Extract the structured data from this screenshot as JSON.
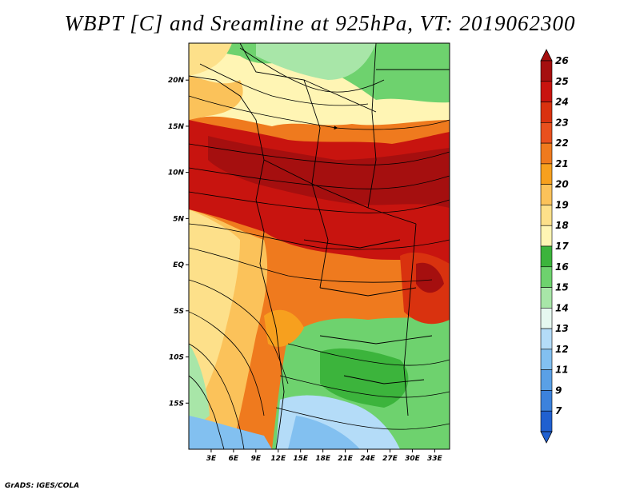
{
  "title": "WBPT [C] and Sreamline at 925hPa, VT: 2019062300",
  "credit": "GrADS: IGES/COLA",
  "map": {
    "lat_range": [
      -20,
      24
    ],
    "lon_range": [
      0,
      35
    ],
    "lat_ticks": [
      {
        "value": 20,
        "label": "20N"
      },
      {
        "value": 15,
        "label": "15N"
      },
      {
        "value": 10,
        "label": "10N"
      },
      {
        "value": 5,
        "label": "5N"
      },
      {
        "value": 0,
        "label": "EQ"
      },
      {
        "value": -5,
        "label": "5S"
      },
      {
        "value": -10,
        "label": "10S"
      },
      {
        "value": -15,
        "label": "15S"
      }
    ],
    "lon_ticks": [
      {
        "value": 3,
        "label": "3E"
      },
      {
        "value": 6,
        "label": "6E"
      },
      {
        "value": 9,
        "label": "9E"
      },
      {
        "value": 12,
        "label": "12E"
      },
      {
        "value": 15,
        "label": "15E"
      },
      {
        "value": 18,
        "label": "18E"
      },
      {
        "value": 21,
        "label": "21E"
      },
      {
        "value": 24,
        "label": "24E"
      },
      {
        "value": 27,
        "label": "27E"
      },
      {
        "value": 30,
        "label": "30E"
      },
      {
        "value": 33,
        "label": "33E"
      }
    ]
  },
  "colorbar": {
    "levels": [
      {
        "label": "26",
        "color": "#a50f0f"
      },
      {
        "label": "25",
        "color": "#c8140f"
      },
      {
        "label": "24",
        "color": "#d9320f"
      },
      {
        "label": "23",
        "color": "#e8501e"
      },
      {
        "label": "22",
        "color": "#ef7a1e"
      },
      {
        "label": "21",
        "color": "#f7a01e"
      },
      {
        "label": "20",
        "color": "#fbc25a"
      },
      {
        "label": "19",
        "color": "#fde08a"
      },
      {
        "label": "18",
        "color": "#fff5b4"
      },
      {
        "label": "17",
        "color": "#3cb43c"
      },
      {
        "label": "16",
        "color": "#6ed26e"
      },
      {
        "label": "15",
        "color": "#a8e6a8"
      },
      {
        "label": "14",
        "color": "#e6f8f0"
      },
      {
        "label": "13",
        "color": "#b4dcf8"
      },
      {
        "label": "12",
        "color": "#82c0f0"
      },
      {
        "label": "11",
        "color": "#5aa0e6"
      },
      {
        "label": "9",
        "color": "#3c82dc"
      },
      {
        "label": "7",
        "color": "#2060d0"
      }
    ]
  }
}
